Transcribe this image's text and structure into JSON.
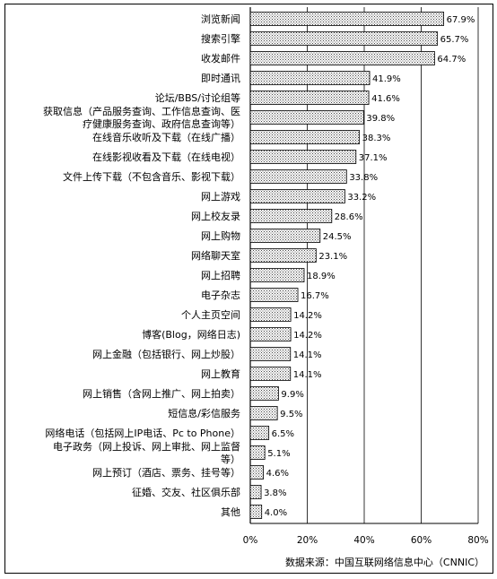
{
  "chart_data": {
    "type": "bar",
    "orientation": "horizontal",
    "categories": [
      "浏览新闻",
      "搜索引擎",
      "收发邮件",
      "即时通讯",
      "论坛/BBS/讨论组等",
      "获取信息（产品服务查询、工作信息查询、医疗健康服务查询、政府信息查询等）",
      "在线音乐收听及下载（在线广播）",
      "在线影视收看及下载（在线电视）",
      "文件上传下载（不包含音乐、影视下载）",
      "网上游戏",
      "网上校友录",
      "网上购物",
      "网络聊天室",
      "网上招聘",
      "电子杂志",
      "个人主页空间",
      "博客(Blog，网络日志)",
      "网上金融（包括银行、网上炒股）",
      "网上教育",
      "网上销售（含网上推广、网上拍卖）",
      "短信息/彩信服务",
      "网络电话（包括网上IP电话、Pc to Phone）",
      "电子政务（网上投诉、网上审批、网上监督等）",
      "网上预订（酒店、票务、挂号等）",
      "征婚、交友、社区俱乐部",
      "其他"
    ],
    "category_lines": [
      [
        "浏览新闻"
      ],
      [
        "搜索引擎"
      ],
      [
        "收发邮件"
      ],
      [
        "即时通讯"
      ],
      [
        "论坛/BBS/讨论组等"
      ],
      [
        "获取信息（产品服务查询、工作信息查询、医",
        "疗健康服务查询、政府信息查询等）"
      ],
      [
        "在线音乐收听及下载（在线广播）"
      ],
      [
        "在线影视收看及下载（在线电视）"
      ],
      [
        "文件上传下载（不包含音乐、影视下载）"
      ],
      [
        "网上游戏"
      ],
      [
        "网上校友录"
      ],
      [
        "网上购物"
      ],
      [
        "网络聊天室"
      ],
      [
        "网上招聘"
      ],
      [
        "电子杂志"
      ],
      [
        "个人主页空间"
      ],
      [
        "博客(Blog，网络日志)"
      ],
      [
        "网上金融（包括银行、网上炒股）"
      ],
      [
        "网上教育"
      ],
      [
        "网上销售（含网上推广、网上拍卖）"
      ],
      [
        "短信息/彩信服务"
      ],
      [
        "网络电话（包括网上IP电话、Pc to Phone）"
      ],
      [
        "电子政务（网上投诉、网上审批、网上监督",
        "等）"
      ],
      [
        "网上预订（酒店、票务、挂号等）"
      ],
      [
        "征婚、交友、社区俱乐部"
      ],
      [
        "其他"
      ]
    ],
    "values": [
      67.9,
      65.7,
      64.7,
      41.9,
      41.6,
      39.8,
      38.3,
      37.1,
      33.8,
      33.2,
      28.6,
      24.5,
      23.1,
      18.9,
      16.7,
      14.2,
      14.2,
      14.1,
      14.1,
      9.9,
      9.5,
      6.5,
      5.1,
      4.6,
      3.8,
      4.0
    ],
    "value_labels": [
      "67.9%",
      "65.7%",
      "64.7%",
      "41.9%",
      "41.6%",
      "39.8%",
      "38.3%",
      "37.1%",
      "33.8%",
      "33.2%",
      "28.6%",
      "24.5%",
      "23.1%",
      "18.9%",
      "16.7%",
      "14.2%",
      "14.2%",
      "14.1%",
      "14.1%",
      "9.9%",
      "9.5%",
      "6.5%",
      "5.1%",
      "4.6%",
      "3.8%",
      "4.0%"
    ],
    "xlim": [
      0,
      80
    ],
    "xticks": [
      0,
      20,
      40,
      60,
      80
    ],
    "xtick_labels": [
      "0%",
      "20%",
      "40%",
      "60%",
      "80%"
    ],
    "grid": true,
    "bar_fill": "hatched-gray",
    "source": "数据来源：中国互联网络信息中心（CNNIC）"
  },
  "colors": {
    "bar_hatch": "#555555",
    "bar_bg": "#ffffff",
    "bar_border": "#000000",
    "grid": "#000000",
    "frame": "#000000"
  }
}
